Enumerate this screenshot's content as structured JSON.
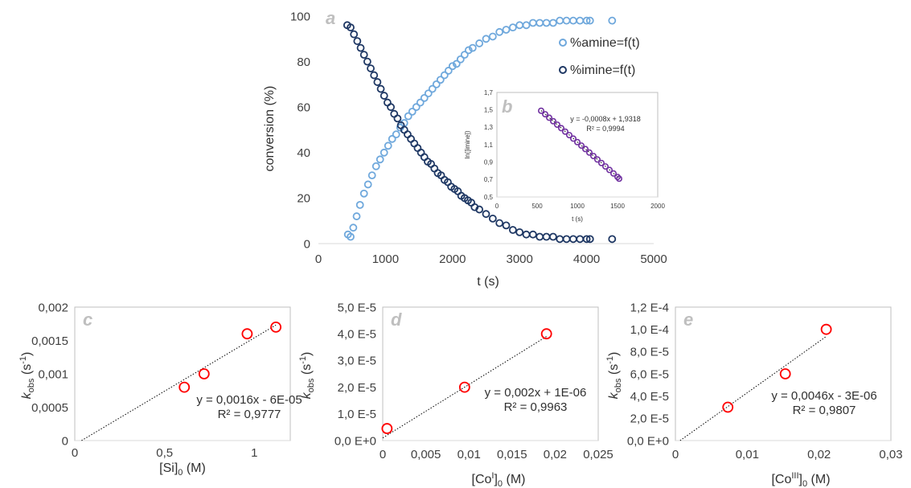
{
  "chart_data": [
    {
      "id": "a",
      "type": "scatter",
      "panel_label": "a",
      "xlabel": "t (s)",
      "ylabel": "conversion (%)",
      "xlim": [
        0,
        5000
      ],
      "ylim": [
        0,
        100
      ],
      "x_ticks": [
        "0",
        "1000",
        "2000",
        "3000",
        "4000",
        "5000"
      ],
      "y_ticks": [
        "0",
        "20",
        "40",
        "60",
        "80",
        "100"
      ],
      "legend_position": "right",
      "series": [
        {
          "name": "%amine=f(t)",
          "color": "#6fa8dc",
          "x": [
            440,
            480,
            520,
            570,
            620,
            680,
            740,
            800,
            860,
            920,
            980,
            1040,
            1100,
            1160,
            1220,
            1280,
            1340,
            1400,
            1460,
            1520,
            1580,
            1640,
            1700,
            1760,
            1820,
            1880,
            1940,
            2000,
            2060,
            2120,
            2180,
            2240,
            2300,
            2400,
            2500,
            2600,
            2700,
            2800,
            2900,
            3000,
            3100,
            3200,
            3300,
            3400,
            3500,
            3600,
            3700,
            3800,
            3900,
            4000,
            4050,
            4380
          ],
          "y": [
            4,
            3,
            7,
            12,
            17,
            22,
            26,
            30,
            34,
            37,
            40,
            43,
            46,
            48,
            51,
            53,
            56,
            58,
            60,
            62,
            64,
            66,
            68,
            70,
            72,
            74,
            76,
            78,
            79,
            81,
            83,
            85,
            86,
            88,
            90,
            91,
            93,
            94,
            95,
            96,
            96,
            97,
            97,
            97,
            97,
            98,
            98,
            98,
            98,
            98,
            98,
            98
          ]
        },
        {
          "name": "%imine=f(t)",
          "color": "#1f3864",
          "x": [
            430,
            480,
            530,
            580,
            630,
            680,
            730,
            780,
            830,
            880,
            930,
            980,
            1030,
            1080,
            1130,
            1180,
            1230,
            1280,
            1330,
            1380,
            1430,
            1480,
            1530,
            1580,
            1630,
            1680,
            1730,
            1780,
            1830,
            1880,
            1930,
            1980,
            2030,
            2080,
            2130,
            2180,
            2230,
            2280,
            2330,
            2400,
            2500,
            2600,
            2700,
            2800,
            2900,
            3000,
            3100,
            3200,
            3300,
            3400,
            3500,
            3600,
            3700,
            3800,
            3900,
            4000,
            4050,
            4380
          ],
          "y": [
            96,
            95,
            92,
            89,
            86,
            83,
            80,
            77,
            74,
            71,
            68,
            65,
            62,
            60,
            57,
            55,
            52,
            50,
            48,
            46,
            44,
            42,
            40,
            38,
            36,
            35,
            33,
            31,
            30,
            28,
            27,
            25,
            24,
            23,
            21,
            20,
            19,
            18,
            16,
            15,
            13,
            11,
            9,
            8,
            6,
            5,
            4,
            4,
            3,
            3,
            3,
            2,
            2,
            2,
            2,
            2,
            2,
            2
          ]
        }
      ]
    },
    {
      "id": "b",
      "type": "scatter",
      "panel_label": "b",
      "xlabel": "t (s)",
      "ylabel": "ln([imine])",
      "xlim": [
        0,
        2000
      ],
      "ylim": [
        0.5,
        1.7
      ],
      "x_ticks": [
        "0",
        "500",
        "1000",
        "1500",
        "2000"
      ],
      "y_ticks": [
        "0,5",
        "0,7",
        "0,9",
        "1,1",
        "1,3",
        "1,5",
        "1,7"
      ],
      "series": [
        {
          "color": "#7030a0",
          "x": [
            550,
            600,
            650,
            700,
            750,
            800,
            850,
            900,
            950,
            1000,
            1050,
            1100,
            1150,
            1200,
            1250,
            1300,
            1350,
            1400,
            1450,
            1500,
            1520
          ],
          "y": [
            1.49,
            1.45,
            1.41,
            1.37,
            1.33,
            1.29,
            1.25,
            1.21,
            1.17,
            1.13,
            1.09,
            1.05,
            1.01,
            0.97,
            0.93,
            0.89,
            0.85,
            0.81,
            0.77,
            0.73,
            0.71
          ]
        }
      ],
      "trendline": {
        "slope": -0.0008,
        "intercept": 1.9318
      },
      "equation": "y = -0,0008x + 1,9318",
      "r2": "R² = 0,9994"
    },
    {
      "id": "c",
      "type": "scatter",
      "panel_label": "c",
      "xlabel": "[Si]0 (M)",
      "xlabel_main": "[Si]",
      "xlabel_sub": "0",
      "xlabel_unit": " (M)",
      "ylabel_main": "k",
      "ylabel_sub": "obs",
      "ylabel_unit": " (s",
      "ylabel_sup": "-1",
      "ylabel_close": ")",
      "xlim": [
        0,
        1.2
      ],
      "ylim": [
        0,
        0.002
      ],
      "x_ticks": [
        "0",
        "0,5",
        "1"
      ],
      "x_tick_values": [
        0,
        0.5,
        1
      ],
      "y_ticks": [
        "0",
        "0,0005",
        "0,001",
        "0,0015",
        "0,002"
      ],
      "series": [
        {
          "color": "#ff0000",
          "x": [
            0.61,
            0.72,
            0.96,
            1.12
          ],
          "y": [
            0.0008,
            0.001,
            0.0016,
            0.0017
          ]
        }
      ],
      "trendline": {
        "slope": 0.0016,
        "intercept": -6e-05,
        "x_range": [
          0.0375,
          1.12
        ]
      },
      "equation": "y = 0,0016x - 6E-05",
      "r2": "R² = 0,9777"
    },
    {
      "id": "d",
      "type": "scatter",
      "panel_label": "d",
      "xlabel": "[CoI]0 (M)",
      "xlabel_main": "[Co",
      "xlabel_sup": "I",
      "xlabel_mid": "]",
      "xlabel_sub": "0",
      "xlabel_unit": " (M)",
      "ylabel_main": "k",
      "ylabel_sub": "obs",
      "ylabel_unit": " (s",
      "ylabel_sup": "-1",
      "ylabel_close": ")",
      "xlim": [
        0,
        0.025
      ],
      "ylim": [
        0,
        5e-05
      ],
      "x_ticks": [
        "0",
        "0,005",
        "0,01",
        "0,015",
        "0,02",
        "0,025"
      ],
      "y_ticks": [
        "0,0 E+0",
        "1,0 E-5",
        "2,0 E-5",
        "3,0 E-5",
        "4,0 E-5",
        "5,0 E-5"
      ],
      "series": [
        {
          "color": "#ff0000",
          "x": [
            0.0005,
            0.0095,
            0.019
          ],
          "y": [
            4.5e-06,
            2e-05,
            4e-05
          ]
        }
      ],
      "trendline": {
        "slope": 0.002,
        "intercept": 1e-06,
        "x_range": [
          0,
          0.019
        ]
      },
      "equation": "y = 0,002x + 1E-06",
      "r2": "R² = 0,9963"
    },
    {
      "id": "e",
      "type": "scatter",
      "panel_label": "e",
      "xlabel": "[CoIII]0 (M)",
      "xlabel_main": "[Co",
      "xlabel_sup": "III",
      "xlabel_mid": "]",
      "xlabel_sub": "0",
      "xlabel_unit": " (M)",
      "ylabel_main": "k",
      "ylabel_sub": "obs",
      "ylabel_unit": " (s",
      "ylabel_sup": "-1",
      "ylabel_close": ")",
      "xlim": [
        0,
        0.03
      ],
      "ylim": [
        0,
        0.00012
      ],
      "x_ticks": [
        "0",
        "0,01",
        "0,02",
        "0,03"
      ],
      "y_ticks": [
        "0,0 E+0",
        "2,0 E-5",
        "4,0 E-5",
        "6,0 E-5",
        "8,0 E-5",
        "1,0 E-4",
        "1,2 E-4"
      ],
      "series": [
        {
          "color": "#ff0000",
          "x": [
            0.0073,
            0.0153,
            0.021
          ],
          "y": [
            3e-05,
            6e-05,
            0.0001
          ]
        }
      ],
      "trendline": {
        "slope": 0.0046,
        "intercept": -3e-06,
        "x_range": [
          0.00065,
          0.021
        ]
      },
      "equation": "y = 0,0046x - 3E-06",
      "r2": "R² = 0,9807"
    }
  ]
}
